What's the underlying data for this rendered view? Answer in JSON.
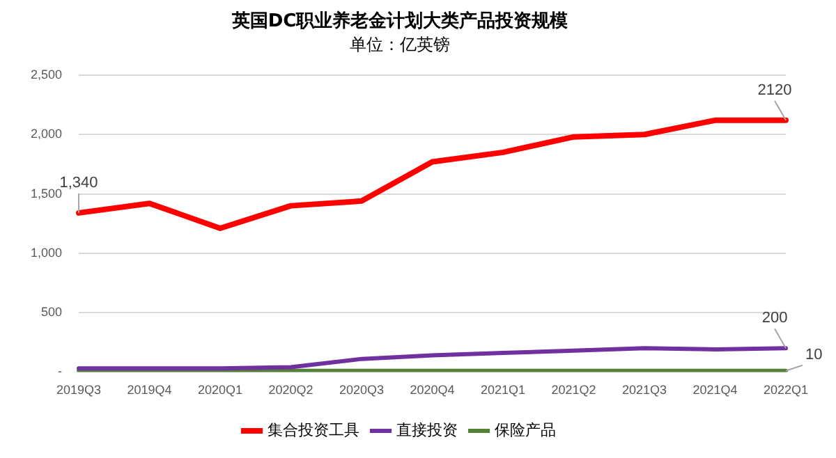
{
  "chart_data": {
    "type": "line",
    "title": "英国DC职业养老金计划大类产品投资规模",
    "subtitle": "单位：亿英镑",
    "categories": [
      "2019Q3",
      "2019Q4",
      "2020Q1",
      "2020Q2",
      "2020Q3",
      "2020Q4",
      "2021Q1",
      "2021Q2",
      "2021Q3",
      "2021Q4",
      "2022Q1"
    ],
    "series": [
      {
        "name": "集合投资工具",
        "color": "#ff0000",
        "values": [
          1340,
          1420,
          1210,
          1400,
          1440,
          1770,
          1850,
          1980,
          2000,
          2120,
          2120
        ],
        "value_labels": [
          "1,340",
          null,
          null,
          null,
          null,
          null,
          null,
          null,
          null,
          null,
          "2120"
        ]
      },
      {
        "name": "直接投资",
        "color": "#7030a0",
        "values": [
          30,
          30,
          30,
          40,
          110,
          140,
          160,
          180,
          200,
          190,
          200
        ],
        "value_labels": [
          null,
          null,
          null,
          null,
          null,
          null,
          null,
          null,
          null,
          null,
          "200"
        ]
      },
      {
        "name": "保险产品",
        "color": "#538135",
        "values": [
          10,
          10,
          10,
          10,
          10,
          10,
          10,
          10,
          10,
          10,
          10
        ],
        "value_labels": [
          null,
          null,
          null,
          null,
          null,
          null,
          null,
          null,
          null,
          null,
          "10"
        ]
      }
    ],
    "ylim": [
      0,
      2500
    ],
    "yticks": [
      {
        "value": 0,
        "label": "-"
      },
      500,
      {
        "value": 1000,
        "label": "1,000"
      },
      {
        "value": 1500,
        "label": "1,500"
      },
      {
        "value": 2000,
        "label": "2,000"
      },
      {
        "value": 2500,
        "label": "2,500"
      }
    ],
    "grid": "y",
    "legend": "bottom",
    "marker": "none",
    "line_style": "solid"
  }
}
